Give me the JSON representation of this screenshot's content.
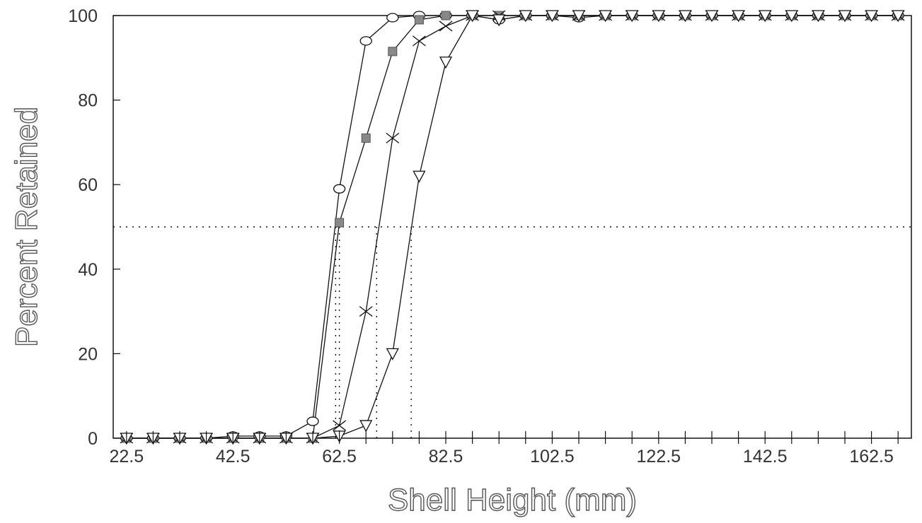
{
  "chart_data": {
    "type": "line",
    "xlabel": "Shell Height (mm)",
    "ylabel": "Percent Retained",
    "xlim": [
      20,
      170
    ],
    "ylim": [
      0,
      100
    ],
    "x_ticks": [
      22.5,
      42.5,
      62.5,
      82.5,
      102.5,
      122.5,
      142.5,
      162.5
    ],
    "y_ticks": [
      0,
      20,
      40,
      60,
      80,
      100
    ],
    "minor_x_step": 5,
    "grid": false,
    "reference_line_y": 50,
    "series": [
      {
        "marker": "circle",
        "x": [
          22.5,
          27.5,
          32.5,
          37.5,
          42.5,
          47.5,
          52.5,
          57.5,
          62.5,
          67.5,
          72.5,
          77.5,
          82.5,
          87.5,
          92.5,
          97.5,
          102.5,
          107.5,
          112.5,
          117.5,
          122.5,
          127.5,
          132.5,
          137.5,
          142.5,
          147.5,
          152.5,
          157.5,
          162.5,
          167.5
        ],
        "y": [
          0,
          0,
          0,
          0,
          0.5,
          0.5,
          0.5,
          4,
          59,
          94,
          99.5,
          100,
          100,
          100,
          99,
          100,
          100,
          99.5,
          100,
          100,
          100,
          100,
          100,
          100,
          100,
          100,
          100,
          100,
          100,
          100
        ]
      },
      {
        "marker": "square",
        "x": [
          22.5,
          27.5,
          32.5,
          37.5,
          42.5,
          47.5,
          52.5,
          57.5,
          62.5,
          67.5,
          72.5,
          77.5,
          82.5,
          87.5,
          92.5,
          97.5,
          102.5,
          107.5,
          112.5,
          117.5,
          122.5,
          127.5,
          132.5,
          137.5,
          142.5,
          147.5,
          152.5,
          157.5,
          162.5,
          167.5
        ],
        "y": [
          0,
          0,
          0,
          0,
          0,
          0,
          0,
          0,
          51,
          71,
          91.5,
          99,
          100,
          100,
          100,
          100,
          100,
          100,
          100,
          100,
          100,
          100,
          100,
          100,
          100,
          100,
          100,
          100,
          100,
          100
        ]
      },
      {
        "marker": "x",
        "x": [
          22.5,
          27.5,
          32.5,
          37.5,
          42.5,
          47.5,
          52.5,
          57.5,
          62.5,
          67.5,
          72.5,
          77.5,
          82.5,
          87.5,
          92.5,
          97.5,
          102.5,
          107.5,
          112.5,
          117.5,
          122.5,
          127.5,
          132.5,
          137.5,
          142.5,
          147.5,
          152.5,
          157.5,
          162.5,
          167.5
        ],
        "y": [
          0,
          0,
          0,
          0,
          0,
          0,
          0,
          0,
          3,
          30,
          71,
          94,
          97.5,
          100,
          100,
          100,
          100,
          100,
          100,
          100,
          100,
          100,
          100,
          100,
          100,
          100,
          100,
          100,
          100,
          100
        ]
      },
      {
        "marker": "triangle",
        "x": [
          22.5,
          27.5,
          32.5,
          37.5,
          42.5,
          47.5,
          52.5,
          57.5,
          62.5,
          67.5,
          72.5,
          77.5,
          82.5,
          87.5,
          92.5,
          97.5,
          102.5,
          107.5,
          112.5,
          117.5,
          122.5,
          127.5,
          132.5,
          137.5,
          142.5,
          147.5,
          152.5,
          157.5,
          162.5,
          167.5
        ],
        "y": [
          0,
          0,
          0,
          0,
          0,
          0,
          0,
          0,
          0.5,
          3,
          20,
          62,
          89,
          100,
          99,
          100,
          100,
          100,
          100,
          100,
          100,
          100,
          100,
          100,
          100,
          100,
          100,
          100,
          100,
          100
        ]
      }
    ],
    "crossing_x": [
      61.8,
      62.5,
      69.5,
      76.0
    ]
  }
}
